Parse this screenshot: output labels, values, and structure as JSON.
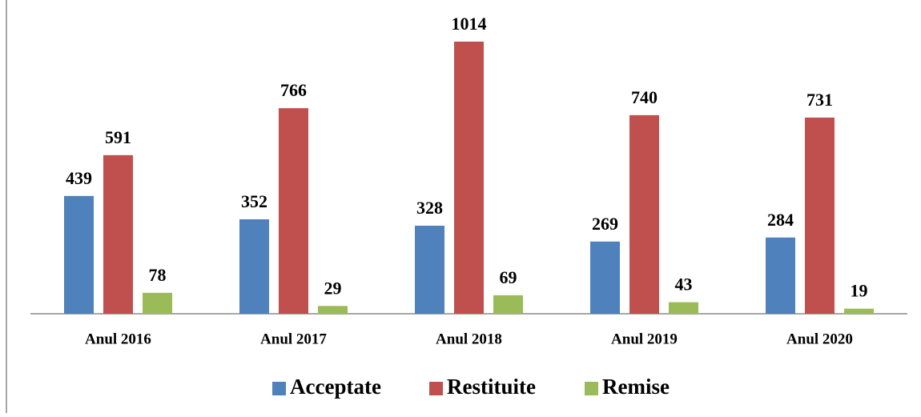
{
  "chart_data": {
    "type": "bar",
    "categories": [
      "Anul 2016",
      "Anul 2017",
      "Anul 2018",
      "Anul 2019",
      "Anul 2020"
    ],
    "series": [
      {
        "name": "Acceptate",
        "color": "#4f81bd",
        "values": [
          439,
          352,
          328,
          269,
          284
        ]
      },
      {
        "name": "Restituite",
        "color": "#c0504d",
        "values": [
          591,
          766,
          1014,
          740,
          731
        ]
      },
      {
        "name": "Remise",
        "color": "#9bbb59",
        "values": [
          78,
          29,
          69,
          43,
          19
        ]
      }
    ],
    "legend": "bottom"
  }
}
